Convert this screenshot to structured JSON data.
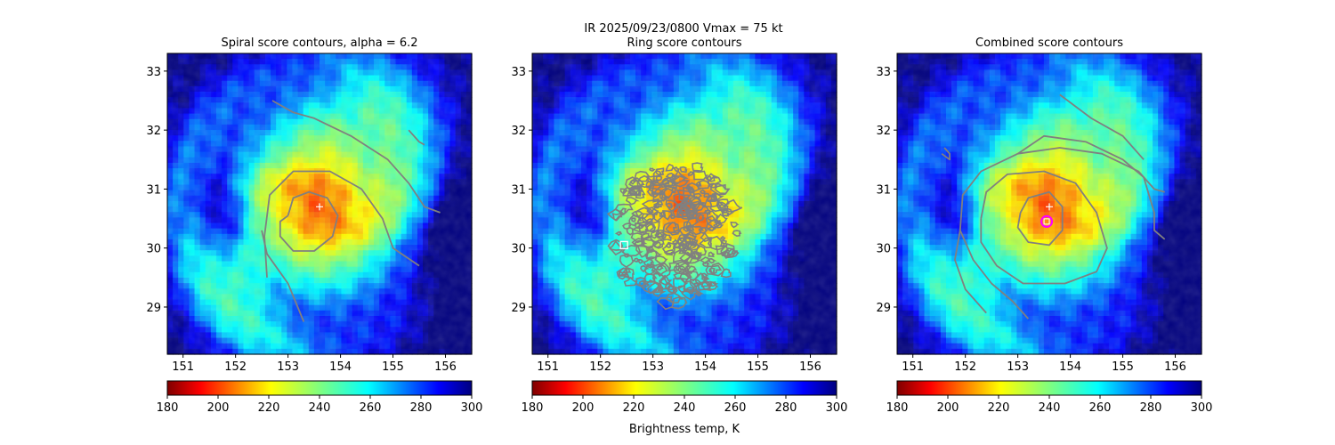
{
  "figure": {
    "suptitle_line1": "IR  2025/09/23/0800    Vmax = 75 kt",
    "colorbar_label": "Brightness temp, K"
  },
  "colors": {
    "contour": "#808080",
    "center_marker": "#ffffff",
    "ring_marker": "#ff00ff",
    "square_marker": "#ffffff"
  },
  "chart_data": [
    {
      "type": "heatmap",
      "title": "Spiral score contours, alpha =  6.2",
      "xlim": [
        150.7,
        156.5
      ],
      "ylim": [
        28.2,
        33.3
      ],
      "xticks": [
        151,
        152,
        153,
        154,
        155,
        156
      ],
      "yticks": [
        29,
        30,
        31,
        32,
        33
      ],
      "colorbar": {
        "cmap": "jet_r",
        "range": [
          180,
          300
        ],
        "ticks": [
          180,
          200,
          220,
          240,
          260,
          280,
          300
        ]
      },
      "center": {
        "lon": 153.6,
        "lat": 30.7
      },
      "markers": [
        {
          "kind": "plus",
          "lon": 153.6,
          "lat": 30.7
        }
      ],
      "contours": [
        [
          [
            153.0,
            30.55
          ],
          [
            153.1,
            30.85
          ],
          [
            153.4,
            30.95
          ],
          [
            153.75,
            30.85
          ],
          [
            153.95,
            30.55
          ],
          [
            153.85,
            30.2
          ],
          [
            153.5,
            29.95
          ],
          [
            153.1,
            29.95
          ],
          [
            152.85,
            30.2
          ],
          [
            152.85,
            30.45
          ],
          [
            153.0,
            30.55
          ]
        ],
        [
          [
            152.6,
            29.5
          ],
          [
            152.55,
            30.2
          ],
          [
            152.65,
            30.9
          ],
          [
            153.1,
            31.3
          ],
          [
            153.8,
            31.3
          ],
          [
            154.4,
            31.0
          ],
          [
            154.8,
            30.5
          ],
          [
            155.0,
            30.0
          ],
          [
            155.5,
            29.7
          ]
        ],
        [
          [
            152.7,
            32.5
          ],
          [
            153.1,
            32.3
          ],
          [
            153.5,
            32.2
          ],
          [
            154.2,
            31.9
          ],
          [
            154.9,
            31.5
          ],
          [
            155.3,
            31.1
          ],
          [
            155.6,
            30.7
          ],
          [
            155.9,
            30.6
          ]
        ],
        [
          [
            153.3,
            28.75
          ],
          [
            153.0,
            29.4
          ],
          [
            152.6,
            29.9
          ],
          [
            152.5,
            30.3
          ]
        ],
        [
          [
            155.3,
            32.0
          ],
          [
            155.5,
            31.8
          ],
          [
            155.6,
            31.75
          ]
        ]
      ]
    },
    {
      "type": "heatmap",
      "title": "Ring score contours",
      "xlim": [
        150.7,
        156.5
      ],
      "ylim": [
        28.2,
        33.3
      ],
      "xticks": [
        151,
        152,
        153,
        154,
        155,
        156
      ],
      "yticks": [
        29,
        30,
        31,
        32,
        33
      ],
      "colorbar": {
        "cmap": "jet_r",
        "range": [
          180,
          300
        ],
        "ticks": [
          180,
          200,
          220,
          240,
          260,
          280,
          300
        ]
      },
      "center": {
        "lon": 153.6,
        "lat": 30.7
      },
      "markers": [
        {
          "kind": "square",
          "lon": 152.45,
          "lat": 30.05
        }
      ],
      "ring_region": {
        "lon": 153.4,
        "lat": 30.25,
        "rlon": 1.25,
        "rlat": 1.2
      },
      "contours": []
    },
    {
      "type": "heatmap",
      "title": "Combined score contours",
      "xlim": [
        150.7,
        156.5
      ],
      "ylim": [
        28.2,
        33.3
      ],
      "xticks": [
        151,
        152,
        153,
        154,
        155,
        156
      ],
      "yticks": [
        29,
        30,
        31,
        32,
        33
      ],
      "colorbar": {
        "cmap": "jet_r",
        "range": [
          180,
          300
        ],
        "ticks": [
          180,
          200,
          220,
          240,
          260,
          280,
          300
        ]
      },
      "center": {
        "lon": 153.6,
        "lat": 30.7
      },
      "markers": [
        {
          "kind": "plus",
          "lon": 153.6,
          "lat": 30.7
        },
        {
          "kind": "ring",
          "lon": 153.55,
          "lat": 30.45
        }
      ],
      "contours": [
        [
          [
            153.05,
            30.6
          ],
          [
            153.2,
            30.85
          ],
          [
            153.6,
            30.95
          ],
          [
            153.85,
            30.7
          ],
          [
            153.85,
            30.3
          ],
          [
            153.6,
            30.05
          ],
          [
            153.2,
            30.1
          ],
          [
            153.0,
            30.35
          ],
          [
            153.05,
            30.6
          ]
        ],
        [
          [
            152.3,
            30.5
          ],
          [
            152.4,
            30.95
          ],
          [
            152.8,
            31.25
          ],
          [
            153.5,
            31.3
          ],
          [
            154.1,
            31.1
          ],
          [
            154.5,
            30.6
          ],
          [
            154.7,
            30.0
          ],
          [
            154.5,
            29.6
          ],
          [
            153.9,
            29.4
          ],
          [
            153.1,
            29.4
          ],
          [
            152.6,
            29.7
          ],
          [
            152.3,
            30.1
          ],
          [
            152.3,
            30.5
          ]
        ],
        [
          [
            153.2,
            28.8
          ],
          [
            152.9,
            29.1
          ],
          [
            152.5,
            29.4
          ],
          [
            152.15,
            29.8
          ],
          [
            151.9,
            30.3
          ],
          [
            151.95,
            30.9
          ],
          [
            152.3,
            31.3
          ],
          [
            153.0,
            31.6
          ],
          [
            153.8,
            31.7
          ],
          [
            154.6,
            31.6
          ],
          [
            155.3,
            31.3
          ],
          [
            155.6,
            31.0
          ],
          [
            155.8,
            30.95
          ]
        ],
        [
          [
            152.4,
            28.9
          ],
          [
            152.0,
            29.3
          ],
          [
            151.8,
            29.8
          ],
          [
            151.9,
            30.3
          ]
        ],
        [
          [
            153.0,
            31.6
          ],
          [
            153.5,
            31.9
          ],
          [
            154.3,
            31.8
          ],
          [
            155.0,
            31.5
          ],
          [
            155.4,
            31.2
          ],
          [
            155.6,
            30.6
          ],
          [
            155.6,
            30.3
          ],
          [
            155.8,
            30.15
          ]
        ],
        [
          [
            153.8,
            32.6
          ],
          [
            154.4,
            32.2
          ],
          [
            155.0,
            31.9
          ],
          [
            155.4,
            31.5
          ]
        ],
        [
          [
            151.55,
            31.6
          ],
          [
            151.7,
            31.5
          ],
          [
            151.7,
            31.6
          ],
          [
            151.6,
            31.7
          ]
        ]
      ]
    }
  ]
}
